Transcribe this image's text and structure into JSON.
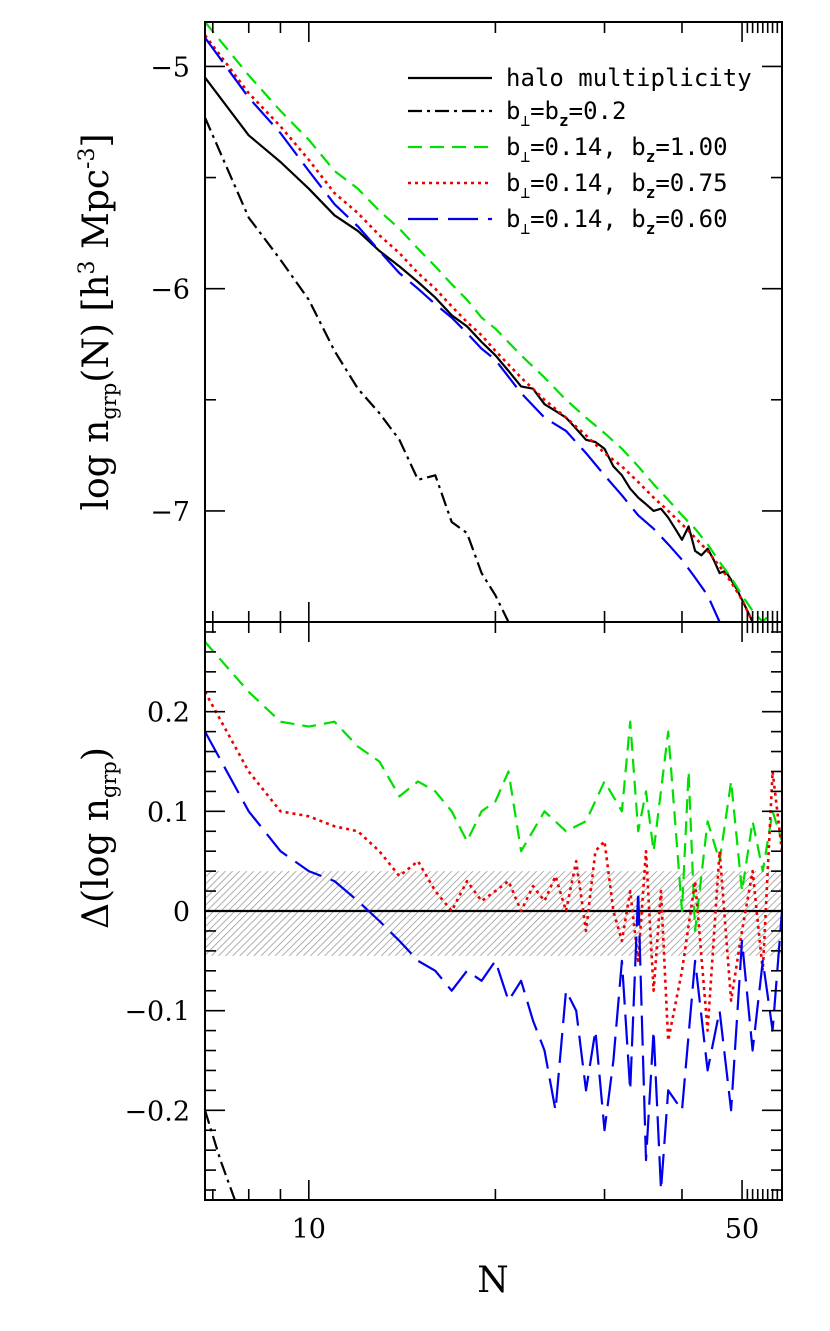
{
  "chart_data": [
    {
      "type": "line",
      "panel": "top",
      "xlabel": "",
      "ylabel": "log n_grp(N) [h^3 Mpc^-3]",
      "ylabel_parts": {
        "a": "log n",
        "sub": "grp",
        "b": "(N) [h",
        "sup1": "3",
        "c": " Mpc",
        "sup2": "-3",
        "d": "]"
      },
      "x_scale": "log",
      "xlim": [
        6.8,
        58
      ],
      "ylim": [
        -7.5,
        -4.8
      ],
      "yticks": [
        -5,
        -6,
        -7
      ],
      "ytick_labels": [
        "−5",
        "−6",
        "−7"
      ],
      "legend_position": "top-right",
      "legend": [
        {
          "text": "halo multiplicity",
          "color": "#000000",
          "dash": "solid"
        },
        {
          "text": "b⊥=bz=0.2",
          "parts": {
            "a": "b",
            "s1": "⊥",
            "b": "=b",
            "s2": "z",
            "c": "=0.2"
          },
          "color": "#000000",
          "dash": "dashdot"
        },
        {
          "text": "b⊥=0.14, bz=1.00",
          "parts": {
            "a": "b",
            "s1": "⊥",
            "b": "=0.14, b",
            "s2": "z",
            "c": "=1.00"
          },
          "color": "#00e000",
          "dash": "shortdash"
        },
        {
          "text": "b⊥=0.14, bz=0.75",
          "parts": {
            "a": "b",
            "s1": "⊥",
            "b": "=0.14, b",
            "s2": "z",
            "c": "=0.75"
          },
          "color": "#ee0000",
          "dash": "dotted"
        },
        {
          "text": "b⊥=0.14, bz=0.60",
          "parts": {
            "a": "b",
            "s1": "⊥",
            "b": "=0.14, b",
            "s2": "z",
            "c": "=0.60"
          },
          "color": "#0000ee",
          "dash": "longdash"
        }
      ],
      "series": [
        {
          "key": "halo",
          "color": "#000000",
          "dash": "solid",
          "x": [
            6.8,
            8,
            9,
            10,
            11,
            12,
            13,
            14,
            15,
            16,
            17,
            18,
            19,
            20,
            21,
            22,
            23,
            24,
            25,
            26,
            27,
            28,
            29,
            30,
            31,
            32,
            33,
            34,
            35,
            36,
            37,
            38,
            39,
            40,
            41,
            42,
            43,
            44,
            45,
            46,
            47,
            48,
            49,
            50,
            51,
            52
          ],
          "y": [
            -5.05,
            -5.31,
            -5.43,
            -5.55,
            -5.67,
            -5.74,
            -5.83,
            -5.9,
            -5.97,
            -6.04,
            -6.12,
            -6.17,
            -6.24,
            -6.3,
            -6.37,
            -6.44,
            -6.45,
            -6.52,
            -6.55,
            -6.58,
            -6.63,
            -6.68,
            -6.69,
            -6.72,
            -6.8,
            -6.84,
            -6.9,
            -6.94,
            -6.97,
            -7.0,
            -6.99,
            -7.03,
            -7.08,
            -7.13,
            -7.07,
            -7.18,
            -7.2,
            -7.17,
            -7.22,
            -7.28,
            -7.27,
            -7.31,
            -7.35,
            -7.4,
            -7.45,
            -7.5
          ]
        },
        {
          "key": "b02",
          "color": "#000000",
          "dash": "dashdot",
          "x": [
            6.8,
            8,
            9,
            10,
            11,
            12,
            13,
            14,
            15,
            16,
            17,
            18,
            19,
            20,
            21
          ],
          "y": [
            -5.23,
            -5.68,
            -5.87,
            -6.05,
            -6.28,
            -6.45,
            -6.56,
            -6.68,
            -6.86,
            -6.84,
            -7.05,
            -7.1,
            -7.28,
            -7.38,
            -7.5
          ]
        },
        {
          "key": "bz100",
          "color": "#00e000",
          "dash": "shortdash",
          "x": [
            6.8,
            8,
            9,
            10,
            11,
            12,
            13,
            14,
            15,
            16,
            17,
            18,
            19,
            20,
            22,
            24,
            26,
            28,
            30,
            32,
            34,
            36,
            38,
            40,
            42,
            44,
            46,
            48,
            50,
            52,
            54,
            56
          ],
          "y": [
            -4.8,
            -5.04,
            -5.2,
            -5.33,
            -5.47,
            -5.55,
            -5.65,
            -5.73,
            -5.82,
            -5.9,
            -5.98,
            -6.05,
            -6.13,
            -6.18,
            -6.3,
            -6.4,
            -6.5,
            -6.58,
            -6.65,
            -6.72,
            -6.8,
            -6.88,
            -6.95,
            -7.02,
            -7.08,
            -7.15,
            -7.23,
            -7.3,
            -7.38,
            -7.45,
            -7.5,
            -7.45
          ]
        },
        {
          "key": "bz075",
          "color": "#ee0000",
          "dash": "dotted",
          "x": [
            6.8,
            8,
            9,
            10,
            11,
            12,
            13,
            14,
            15,
            16,
            17,
            18,
            19,
            20,
            22,
            24,
            26,
            28,
            30,
            32,
            34,
            36,
            38,
            40,
            42,
            44,
            46,
            48,
            50,
            52
          ],
          "y": [
            -4.86,
            -5.12,
            -5.27,
            -5.42,
            -5.57,
            -5.66,
            -5.76,
            -5.84,
            -5.93,
            -6.0,
            -6.08,
            -6.15,
            -6.21,
            -6.28,
            -6.4,
            -6.5,
            -6.58,
            -6.66,
            -6.74,
            -6.8,
            -6.87,
            -6.94,
            -7.0,
            -7.06,
            -7.12,
            -7.18,
            -7.25,
            -7.32,
            -7.4,
            -7.5
          ]
        },
        {
          "key": "bz060",
          "color": "#0000ee",
          "dash": "longdash",
          "x": [
            6.8,
            8,
            9,
            10,
            11,
            12,
            13,
            14,
            15,
            16,
            17,
            18,
            19,
            20,
            22,
            24,
            26,
            28,
            30,
            32,
            34,
            36,
            38,
            40,
            42,
            44,
            46
          ],
          "y": [
            -4.87,
            -5.14,
            -5.3,
            -5.47,
            -5.62,
            -5.72,
            -5.83,
            -5.93,
            -6.0,
            -6.07,
            -6.13,
            -6.2,
            -6.27,
            -6.32,
            -6.47,
            -6.58,
            -6.64,
            -6.74,
            -6.84,
            -6.93,
            -7.02,
            -7.08,
            -7.15,
            -7.22,
            -7.3,
            -7.38,
            -7.5
          ]
        }
      ]
    },
    {
      "type": "line",
      "panel": "bottom",
      "xlabel": "N",
      "ylabel": "Δ(log n_grp)",
      "ylabel_parts": {
        "a": "Δ(log n",
        "sub": "grp",
        "b": ")"
      },
      "x_scale": "log",
      "xlim": [
        6.8,
        58
      ],
      "ylim": [
        -0.29,
        0.29
      ],
      "xticks": [
        10,
        50
      ],
      "xtick_labels": [
        "10",
        "50"
      ],
      "yticks": [
        0.2,
        0.1,
        0,
        -0.1,
        -0.2
      ],
      "ytick_labels": [
        "0.2",
        "0.1",
        "0",
        "−0.1",
        "−0.2"
      ],
      "shaded_band": [
        -0.045,
        0.04
      ],
      "series": [
        {
          "key": "zero",
          "color": "#000000",
          "dash": "solid",
          "x": [
            6.8,
            58
          ],
          "y": [
            0,
            0
          ]
        },
        {
          "key": "b02",
          "color": "#000000",
          "dash": "dashdot",
          "x": [
            6.8,
            7.2,
            7.6
          ],
          "y": [
            -0.2,
            -0.25,
            -0.29
          ]
        },
        {
          "key": "bz100",
          "color": "#00e000",
          "dash": "shortdash",
          "x": [
            6.8,
            8,
            9,
            10,
            11,
            12,
            13,
            14,
            15,
            16,
            17,
            18,
            19,
            20,
            21,
            22,
            24,
            26,
            28,
            30,
            32,
            33,
            34,
            35,
            36,
            38,
            40,
            41,
            42,
            44,
            46,
            48,
            50,
            52,
            54,
            56,
            58
          ],
          "y": [
            0.27,
            0.22,
            0.19,
            0.185,
            0.19,
            0.165,
            0.15,
            0.115,
            0.13,
            0.12,
            0.1,
            0.07,
            0.1,
            0.11,
            0.14,
            0.06,
            0.1,
            0.08,
            0.09,
            0.13,
            0.1,
            0.19,
            0.08,
            0.12,
            0.06,
            0.18,
            0.0,
            0.14,
            -0.02,
            0.09,
            0.05,
            0.13,
            0.02,
            0.09,
            0.04,
            0.1,
            0.07
          ]
        },
        {
          "key": "bz075",
          "color": "#ee0000",
          "dash": "dotted",
          "x": [
            6.8,
            8,
            9,
            10,
            11,
            12,
            13,
            14,
            15,
            16,
            17,
            18,
            19,
            20,
            21,
            22,
            23,
            24,
            25,
            26,
            27,
            28,
            29,
            30,
            31,
            32,
            33,
            34,
            35,
            36,
            37,
            38,
            40,
            42,
            44,
            46,
            48,
            50,
            52,
            54,
            56,
            58
          ],
          "y": [
            0.22,
            0.14,
            0.1,
            0.095,
            0.085,
            0.08,
            0.06,
            0.035,
            0.05,
            0.02,
            0.0,
            0.03,
            0.01,
            0.02,
            0.03,
            0.0,
            0.025,
            0.01,
            0.035,
            0.0,
            0.05,
            -0.02,
            0.06,
            0.07,
            0.0,
            -0.03,
            0.02,
            -0.05,
            0.06,
            -0.08,
            0.02,
            -0.13,
            -0.06,
            0.03,
            -0.12,
            0.06,
            -0.09,
            -0.02,
            0.04,
            -0.06,
            0.14,
            0.06
          ]
        },
        {
          "key": "bz060",
          "color": "#0000ee",
          "dash": "longdash",
          "x": [
            6.8,
            8,
            9,
            10,
            11,
            12,
            13,
            14,
            15,
            16,
            17,
            18,
            19,
            20,
            21,
            22,
            23,
            24,
            25,
            26,
            27,
            28,
            29,
            30,
            31,
            32,
            33,
            34,
            35,
            36,
            37,
            38,
            40,
            42,
            44,
            46,
            48,
            50,
            52,
            54,
            56,
            58
          ],
          "y": [
            0.18,
            0.1,
            0.06,
            0.04,
            0.03,
            0.01,
            -0.01,
            -0.03,
            -0.05,
            -0.06,
            -0.08,
            -0.06,
            -0.07,
            -0.05,
            -0.09,
            -0.07,
            -0.11,
            -0.14,
            -0.2,
            -0.08,
            -0.1,
            -0.18,
            -0.12,
            -0.22,
            -0.15,
            -0.05,
            -0.18,
            0.02,
            -0.25,
            -0.12,
            -0.28,
            -0.18,
            -0.2,
            -0.05,
            -0.16,
            -0.1,
            -0.2,
            -0.03,
            -0.14,
            -0.05,
            -0.12,
            0.0
          ]
        }
      ]
    }
  ]
}
